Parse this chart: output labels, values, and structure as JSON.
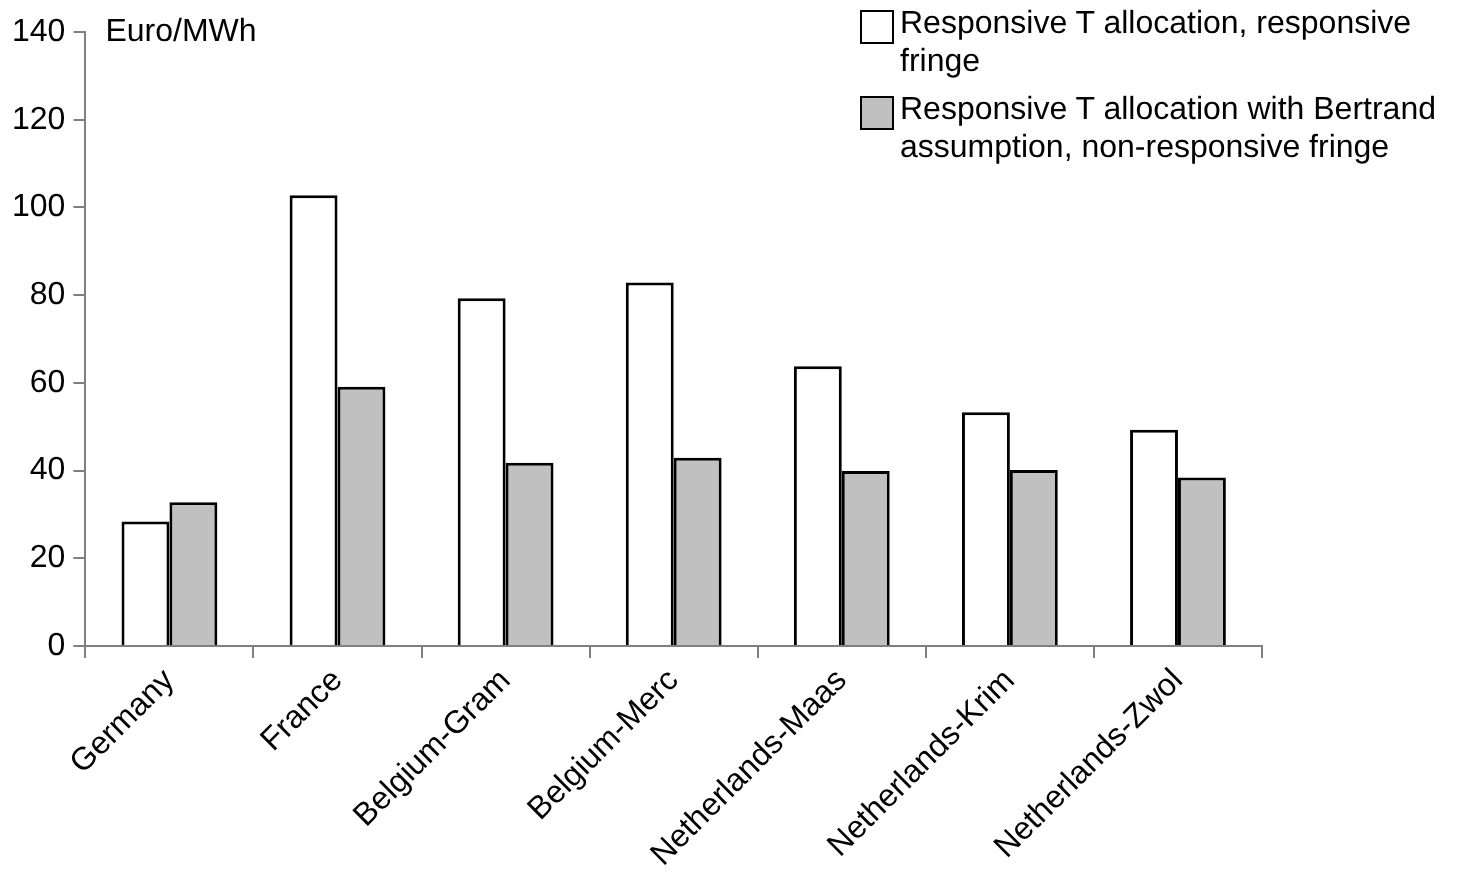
{
  "chart_data": {
    "type": "bar",
    "ylabel": "Euro/MWh",
    "categories": [
      "Germany",
      "France",
      "Belgium-Gram",
      "Belgium-Merc",
      "Netherlands-Maas",
      "Netherlands-Krim",
      "Netherlands-Zwol"
    ],
    "series": [
      {
        "name": "Responsive T allocation, responsive fringe",
        "color": "#ffffff",
        "values": [
          28.4,
          102.8,
          79.3,
          82.9,
          63.8,
          53.3,
          49.3
        ]
      },
      {
        "name": "Responsive T allocation with Bertrand assumption, non-responsive fringe",
        "color": "#c0c0c0",
        "values": [
          32.8,
          59.1,
          41.8,
          42.9,
          39.9,
          40.1,
          38.4
        ]
      }
    ],
    "ylim": [
      0,
      140
    ],
    "yticks": [
      0,
      20,
      40,
      60,
      80,
      100,
      120,
      140
    ],
    "legend": "top right"
  }
}
